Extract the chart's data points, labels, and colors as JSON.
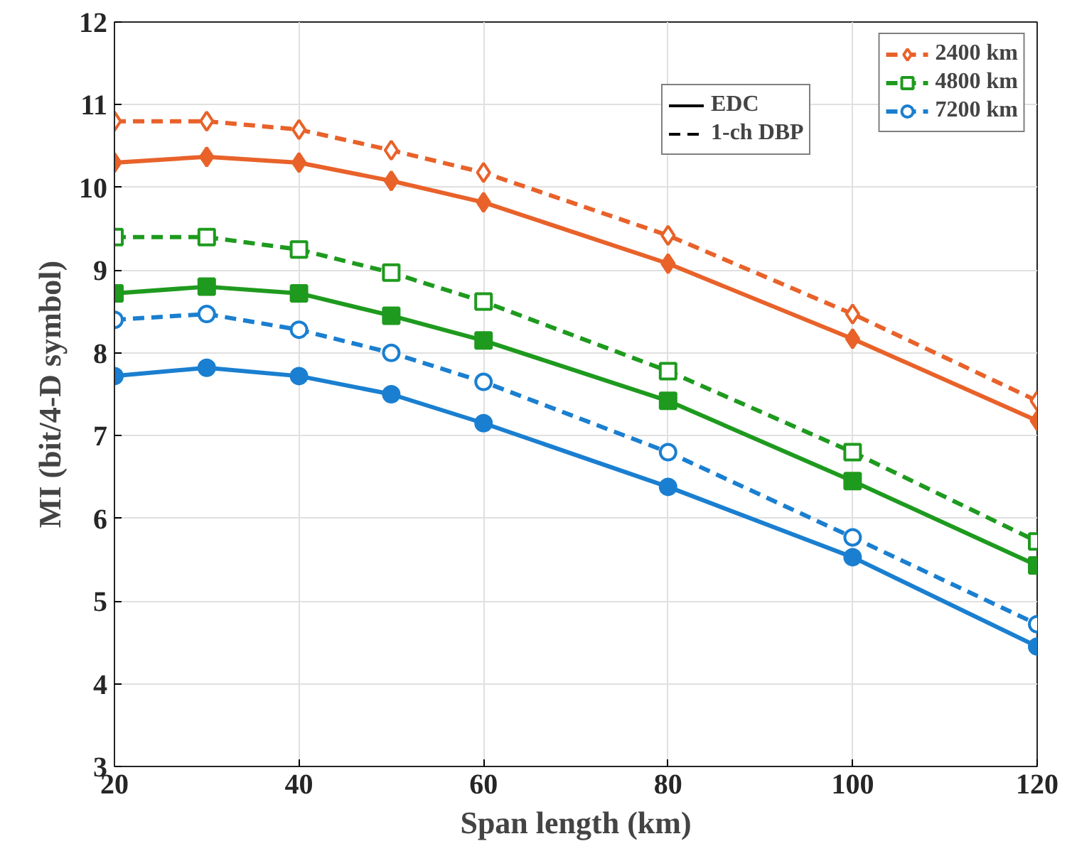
{
  "chart_data": {
    "type": "line",
    "xlabel": "Span length (km)",
    "ylabel": "MI (bit/4-D symbol)",
    "x": [
      20,
      30,
      40,
      50,
      60,
      80,
      100,
      120
    ],
    "xlim": [
      20,
      120
    ],
    "xticks": [
      20,
      40,
      60,
      80,
      100,
      120
    ],
    "ylim": [
      3,
      12
    ],
    "yticks": [
      3,
      4,
      5,
      6,
      7,
      8,
      9,
      10,
      11,
      12
    ],
    "grid": true,
    "legend": "top right",
    "annotations": [
      "EDC",
      "1-ch DBP"
    ],
    "series": [
      {
        "color": "#e8622a",
        "marker": "diamond",
        "line_style": "solid",
        "values": [
          10.3,
          10.37,
          10.3,
          10.08,
          9.82,
          9.08,
          8.17,
          7.18
        ]
      },
      {
        "name": "2400 km",
        "color": "#e8622a",
        "marker": "diamond",
        "line_style": "dashed",
        "values": [
          10.8,
          10.8,
          10.7,
          10.45,
          10.18,
          9.42,
          8.47,
          7.42
        ]
      },
      {
        "color": "#1e9a1e",
        "marker": "square",
        "line_style": "solid",
        "values": [
          8.72,
          8.8,
          8.72,
          8.45,
          8.15,
          7.42,
          6.45,
          5.43
        ]
      },
      {
        "name": "4800 km",
        "color": "#1e9a1e",
        "marker": "square",
        "line_style": "dashed",
        "values": [
          9.4,
          9.4,
          9.25,
          8.97,
          8.62,
          7.78,
          6.8,
          5.72
        ]
      },
      {
        "color": "#1a7fd0",
        "marker": "circle",
        "line_style": "solid",
        "values": [
          7.72,
          7.82,
          7.72,
          7.5,
          7.15,
          6.38,
          5.53,
          4.45
        ]
      },
      {
        "name": "7200 km",
        "color": "#1a7fd0",
        "marker": "circle",
        "line_style": "dashed",
        "values": [
          8.4,
          8.47,
          8.28,
          8.0,
          7.65,
          6.8,
          5.77,
          4.72
        ]
      }
    ]
  }
}
